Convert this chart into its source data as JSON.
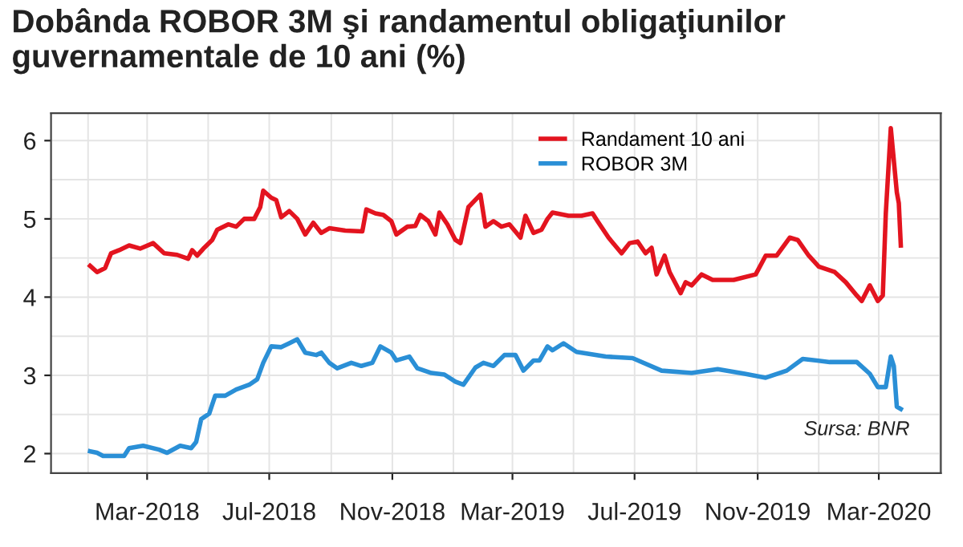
{
  "chart_data": {
    "type": "line",
    "title": "Dobânda ROBOR 3M şi randamentul obligaţiunilor\nguvernamentale de 10 ani (%)",
    "annotations": [
      "Sursa: BNR"
    ],
    "series": [
      {
        "name": "Randament 10 ani",
        "color": "#e3141f",
        "x": [
          "2018-01-03",
          "2018-01-10",
          "2018-01-18",
          "2018-01-24",
          "2018-02-01",
          "2018-02-11",
          "2018-02-22",
          "2018-03-07",
          "2018-03-18",
          "2018-03-31",
          "2018-04-11",
          "2018-04-15",
          "2018-04-20",
          "2018-04-27",
          "2018-05-05",
          "2018-05-10",
          "2018-05-21",
          "2018-05-29",
          "2018-06-06",
          "2018-06-16",
          "2018-06-22",
          "2018-06-25",
          "2018-07-03",
          "2018-07-08",
          "2018-07-13",
          "2018-07-21",
          "2018-07-29",
          "2018-08-06",
          "2018-08-14",
          "2018-08-22",
          "2018-08-30",
          "2018-09-15",
          "2018-10-02",
          "2018-10-06",
          "2018-10-15",
          "2018-10-23",
          "2018-10-31",
          "2018-11-05",
          "2018-11-16",
          "2018-11-24",
          "2018-11-29",
          "2018-12-07",
          "2018-12-14",
          "2018-12-18",
          "2018-12-26",
          "2019-01-03",
          "2019-01-08",
          "2019-01-16",
          "2019-01-28",
          "2019-02-02",
          "2019-02-10",
          "2019-02-18",
          "2019-02-26",
          "2019-03-09",
          "2019-03-14",
          "2019-03-22",
          "2019-03-30",
          "2019-04-05",
          "2019-04-10",
          "2019-04-26",
          "2019-05-09",
          "2019-05-20",
          "2019-05-25",
          "2019-06-05",
          "2019-06-18",
          "2019-06-26",
          "2019-07-04",
          "2019-07-12",
          "2019-07-18",
          "2019-07-23",
          "2019-07-31",
          "2019-08-05",
          "2019-08-16",
          "2019-08-21",
          "2019-08-27",
          "2019-09-06",
          "2019-09-17",
          "2019-10-08",
          "2019-10-30",
          "2019-11-09",
          "2019-11-20",
          "2019-12-03",
          "2019-12-11",
          "2019-12-22",
          "2020-01-01",
          "2020-01-17",
          "2020-01-28",
          "2020-02-08",
          "2020-02-13",
          "2020-02-21",
          "2020-02-29",
          "2020-03-05",
          "2020-03-08",
          "2020-03-13",
          "2020-03-19",
          "2020-03-21",
          "2020-03-23"
        ],
        "values": [
          4.4,
          4.32,
          4.37,
          4.56,
          4.6,
          4.66,
          4.62,
          4.69,
          4.56,
          4.54,
          4.49,
          4.6,
          4.53,
          4.63,
          4.73,
          4.86,
          4.93,
          4.9,
          5.0,
          5.0,
          5.15,
          5.36,
          5.27,
          5.24,
          5.02,
          5.1,
          5.0,
          4.8,
          4.95,
          4.82,
          4.88,
          4.85,
          4.84,
          5.12,
          5.07,
          5.05,
          4.97,
          4.8,
          4.9,
          4.91,
          5.05,
          4.97,
          4.8,
          5.08,
          4.93,
          4.73,
          4.69,
          5.15,
          5.31,
          4.9,
          4.97,
          4.9,
          4.93,
          4.76,
          5.04,
          4.82,
          4.86,
          5.0,
          5.08,
          5.04,
          5.04,
          5.07,
          4.97,
          4.76,
          4.56,
          4.69,
          4.71,
          4.56,
          4.63,
          4.29,
          4.53,
          4.32,
          4.05,
          4.19,
          4.15,
          4.29,
          4.22,
          4.22,
          4.29,
          4.53,
          4.53,
          4.76,
          4.73,
          4.53,
          4.39,
          4.32,
          4.19,
          4.02,
          3.95,
          4.15,
          3.95,
          4.02,
          5.07,
          6.16,
          5.34,
          5.2,
          4.66
        ]
      },
      {
        "name": "ROBOR 3M",
        "color": "#2a8fd6",
        "x": [
          "2018-01-03",
          "2018-01-10",
          "2018-01-16",
          "2018-01-26",
          "2018-02-06",
          "2018-02-11",
          "2018-02-25",
          "2018-03-13",
          "2018-03-21",
          "2018-04-03",
          "2018-04-14",
          "2018-04-19",
          "2018-04-24",
          "2018-05-02",
          "2018-05-08",
          "2018-05-18",
          "2018-05-29",
          "2018-06-11",
          "2018-06-19",
          "2018-06-25",
          "2018-07-03",
          "2018-07-13",
          "2018-07-21",
          "2018-07-29",
          "2018-08-06",
          "2018-08-17",
          "2018-08-22",
          "2018-08-30",
          "2018-09-07",
          "2018-09-21",
          "2018-10-01",
          "2018-10-12",
          "2018-10-20",
          "2018-10-31",
          "2018-11-05",
          "2018-11-18",
          "2018-11-26",
          "2018-12-10",
          "2018-12-23",
          "2019-01-03",
          "2019-01-11",
          "2019-01-23",
          "2019-01-31",
          "2019-02-10",
          "2019-02-21",
          "2019-03-04",
          "2019-03-12",
          "2019-03-22",
          "2019-03-28",
          "2019-04-05",
          "2019-04-10",
          "2019-04-21",
          "2019-05-04",
          "2019-06-02",
          "2019-06-29",
          "2019-07-28",
          "2019-08-27",
          "2019-09-22",
          "2019-10-19",
          "2019-11-09",
          "2019-11-30",
          "2019-12-16",
          "2020-01-12",
          "2020-02-08",
          "2020-02-21",
          "2020-02-29",
          "2020-03-08",
          "2020-03-13",
          "2020-03-16",
          "2020-03-19",
          "2020-03-23"
        ],
        "values": [
          2.03,
          2.01,
          1.97,
          1.97,
          1.97,
          2.07,
          2.1,
          2.05,
          2.01,
          2.1,
          2.07,
          2.15,
          2.44,
          2.51,
          2.74,
          2.74,
          2.82,
          2.88,
          2.95,
          3.16,
          3.37,
          3.36,
          3.41,
          3.46,
          3.29,
          3.26,
          3.29,
          3.16,
          3.09,
          3.16,
          3.12,
          3.16,
          3.37,
          3.29,
          3.19,
          3.24,
          3.09,
          3.03,
          3.01,
          2.92,
          2.88,
          3.1,
          3.16,
          3.12,
          3.26,
          3.26,
          3.06,
          3.19,
          3.19,
          3.37,
          3.32,
          3.41,
          3.3,
          3.24,
          3.22,
          3.06,
          3.03,
          3.08,
          3.02,
          2.97,
          3.06,
          3.21,
          3.17,
          3.17,
          3.02,
          2.85,
          2.85,
          3.24,
          3.12,
          2.6,
          2.57
        ]
      }
    ],
    "xlim": [
      "2017-11-25",
      "2020-05-02"
    ],
    "xticks": [
      {
        "value": "2018-01-01",
        "label": null
      },
      {
        "value": "2018-03-01",
        "label": "Mar-2018"
      },
      {
        "value": "2018-05-01",
        "label": null
      },
      {
        "value": "2018-07-01",
        "label": "Jul-2018"
      },
      {
        "value": "2018-09-01",
        "label": null
      },
      {
        "value": "2018-11-01",
        "label": "Nov-2018"
      },
      {
        "value": "2019-01-01",
        "label": null
      },
      {
        "value": "2019-03-01",
        "label": "Mar-2019"
      },
      {
        "value": "2019-05-01",
        "label": null
      },
      {
        "value": "2019-07-01",
        "label": "Jul-2019"
      },
      {
        "value": "2019-09-01",
        "label": null
      },
      {
        "value": "2019-11-01",
        "label": "Nov-2019"
      },
      {
        "value": "2020-01-01",
        "label": null
      },
      {
        "value": "2020-03-01",
        "label": "Mar-2020"
      },
      {
        "value": "2020-05-01",
        "label": null
      }
    ],
    "ylim": [
      1.75,
      6.35
    ],
    "yticks": [
      2,
      {
        "value": 2.5,
        "label": null
      },
      3,
      {
        "value": 3.5,
        "label": null
      },
      4,
      {
        "value": 4.5,
        "label": null
      },
      5,
      {
        "value": 5.5,
        "label": null
      },
      6
    ],
    "grid": true,
    "legend": "top right",
    "marker": "none",
    "line_style": "solid"
  }
}
